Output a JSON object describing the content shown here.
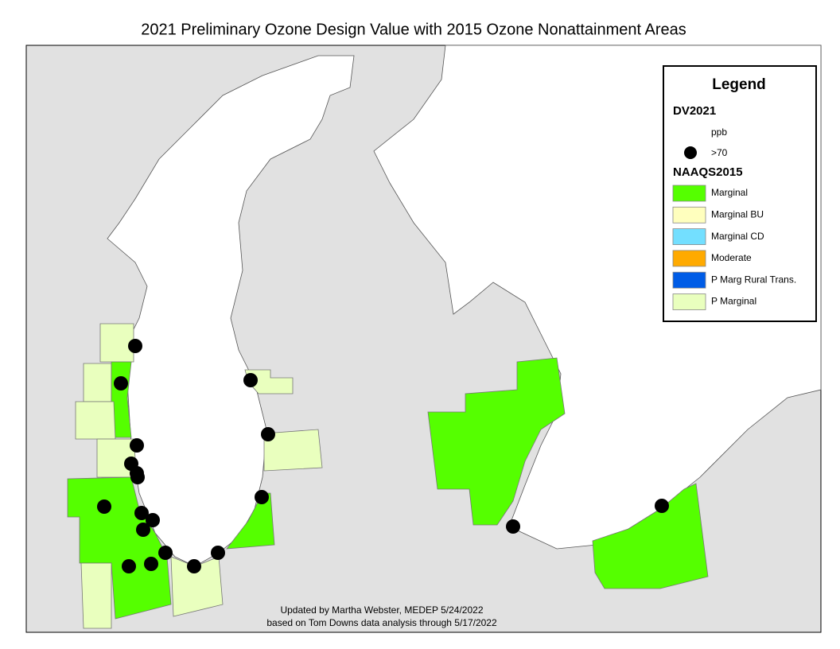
{
  "title": "2021 Preliminary Ozone Design Value with 2015 Ozone Nonattainment Areas",
  "legend": {
    "title": "Legend",
    "dv_heading": "DV2021",
    "dv_unit": "ppb",
    "dv_item": ">70",
    "naaqs_heading": "NAAQS2015",
    "naaqs_items": [
      {
        "label": "Marginal",
        "color": "#55ff00"
      },
      {
        "label": "Marginal BU",
        "color": "#ffffbe"
      },
      {
        "label": "Marginal CD",
        "color": "#73dfff"
      },
      {
        "label": "Moderate",
        "color": "#ffaa00"
      },
      {
        "label": "P Marg Rural Trans.",
        "color": "#005ce6"
      },
      {
        "label": "P Marginal",
        "color": "#e9ffbe"
      }
    ]
  },
  "credits": [
    "Updated by Martha Webster, MEDEP 5/24/2022",
    "based on Tom Downs data analysis through 5/17/2022"
  ]
}
